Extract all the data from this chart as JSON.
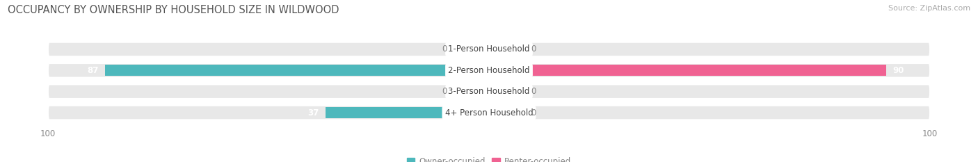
{
  "title": "OCCUPANCY BY OWNERSHIP BY HOUSEHOLD SIZE IN WILDWOOD",
  "source": "Source: ZipAtlas.com",
  "categories": [
    "1-Person Household",
    "2-Person Household",
    "3-Person Household",
    "4+ Person Household"
  ],
  "owner_values": [
    0,
    87,
    0,
    37
  ],
  "renter_values": [
    0,
    90,
    0,
    0
  ],
  "owner_color": "#4db8bc",
  "owner_color_light": "#8dd4d6",
  "renter_color": "#f06292",
  "renter_color_light": "#f4a7c0",
  "bar_bg_color": "#e8e8e8",
  "row_bg_color": "#f0f0f0",
  "axis_max": 100,
  "bar_height": 0.52,
  "fig_bg_color": "#ffffff",
  "title_fontsize": 10.5,
  "source_fontsize": 8,
  "label_fontsize": 8.5,
  "tick_fontsize": 8.5,
  "legend_fontsize": 8.5,
  "stub_size": 8
}
